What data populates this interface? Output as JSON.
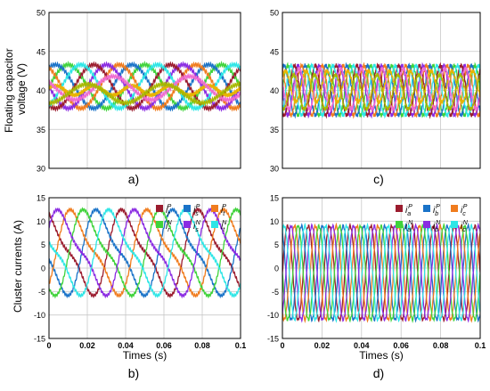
{
  "figure": {
    "colors": {
      "red": "#9b1c2e",
      "blue": "#1a73c8",
      "orange": "#f07c1e",
      "green": "#3fd33a",
      "purple": "#8a2be2",
      "cyan": "#2ee6e6",
      "gold": "#e8b400",
      "pink": "#f06bd0",
      "olive": "#a8b800"
    },
    "ylabel_top": "Floating capacitor voltage (V)",
    "ylabel_top_lines": [
      "Floating capacitor",
      "voltage (V)"
    ],
    "ylabel_bottom": "Cluster currents (A)",
    "xlabel": "Times (s)"
  },
  "chart_data": [
    {
      "id": "a",
      "panel_label": "a)",
      "type": "line",
      "xlim": [
        0,
        0.1
      ],
      "ylim": [
        30,
        50
      ],
      "yticks": [
        "50",
        "45",
        "40",
        "35",
        "30"
      ],
      "grid": true,
      "series": [
        {
          "color": "#3fd33a",
          "mean": 40.5,
          "amp": 2.8,
          "freq": 25,
          "phase": 0.0
        },
        {
          "color": "#1a73c8",
          "mean": 40.5,
          "amp": 2.8,
          "freq": 25,
          "phase": 1.05
        },
        {
          "color": "#f07c1e",
          "mean": 40.5,
          "amp": 2.8,
          "freq": 25,
          "phase": 2.1
        },
        {
          "color": "#8a2be2",
          "mean": 40.5,
          "amp": 2.8,
          "freq": 25,
          "phase": 3.14
        },
        {
          "color": "#9b1c2e",
          "mean": 40.5,
          "amp": 2.8,
          "freq": 25,
          "phase": 4.19
        },
        {
          "color": "#2ee6e6",
          "mean": 40.5,
          "amp": 2.8,
          "freq": 25,
          "phase": 5.24
        },
        {
          "color": "#e8b400",
          "mean": 40.0,
          "amp": 0.6,
          "freq": 50,
          "phase": 0.5
        },
        {
          "color": "#f06bd0",
          "mean": 40.3,
          "amp": 1.5,
          "freq": 25,
          "phase": 2.6
        },
        {
          "color": "#a8b800",
          "mean": 39.6,
          "amp": 1.2,
          "freq": 25,
          "phase": 4.7
        }
      ]
    },
    {
      "id": "c",
      "panel_label": "c)",
      "type": "line",
      "xlim": [
        0,
        0.1
      ],
      "ylim": [
        30,
        50
      ],
      "yticks": [
        "50",
        "45",
        "40",
        "35",
        "30"
      ],
      "grid": true,
      "series": [
        {
          "color": "#3fd33a",
          "mean": 40.0,
          "amp": 3.2,
          "freq": 95,
          "phase": 0.0
        },
        {
          "color": "#1a73c8",
          "mean": 40.0,
          "amp": 3.2,
          "freq": 95,
          "phase": 1.05
        },
        {
          "color": "#f07c1e",
          "mean": 40.0,
          "amp": 3.2,
          "freq": 95,
          "phase": 2.1
        },
        {
          "color": "#8a2be2",
          "mean": 40.0,
          "amp": 3.2,
          "freq": 95,
          "phase": 3.14
        },
        {
          "color": "#9b1c2e",
          "mean": 40.0,
          "amp": 3.2,
          "freq": 95,
          "phase": 4.19
        },
        {
          "color": "#2ee6e6",
          "mean": 40.0,
          "amp": 3.2,
          "freq": 95,
          "phase": 5.24
        },
        {
          "color": "#e8b400",
          "mean": 40.5,
          "amp": 2.0,
          "freq": 95,
          "phase": 0.7
        },
        {
          "color": "#f06bd0",
          "mean": 40.2,
          "amp": 2.6,
          "freq": 95,
          "phase": 2.8
        },
        {
          "color": "#a8b800",
          "mean": 39.8,
          "amp": 2.2,
          "freq": 95,
          "phase": 4.4
        }
      ]
    },
    {
      "id": "b",
      "panel_label": "b)",
      "type": "line",
      "xlim": [
        0,
        0.1
      ],
      "ylim": [
        -15,
        15
      ],
      "xticks": [
        "0",
        "0.02",
        "0.04",
        "0.06",
        "0.08",
        "0.1"
      ],
      "yticks": [
        "15",
        "10",
        "5",
        "0",
        "-5",
        "-10",
        "-15"
      ],
      "xlabel": "Times (s)",
      "grid": true,
      "legend": {
        "position": "top-right",
        "columns": 3
      },
      "series": [
        {
          "name": "i_r^P",
          "sym": "i",
          "sub": "r",
          "sup": "P",
          "color": "#9b1c2e",
          "offset": 3.3,
          "amp": 8,
          "h": 2.5,
          "freq": 25,
          "phase": 1.5
        },
        {
          "name": "i_s^P",
          "sym": "i",
          "sub": "s",
          "sup": "P",
          "color": "#1a73c8",
          "offset": 3.3,
          "amp": 8,
          "h": 2.5,
          "freq": 25,
          "phase": 3.59
        },
        {
          "name": "i_t^P",
          "sym": "i",
          "sub": "t",
          "sup": "P",
          "color": "#f07c1e",
          "offset": 3.3,
          "amp": 8,
          "h": 2.5,
          "freq": 25,
          "phase": 5.69
        },
        {
          "name": "i_r^N",
          "sym": "i",
          "sub": "r",
          "sup": "N",
          "color": "#3fd33a",
          "offset": 3.3,
          "amp": 8,
          "h": 2.5,
          "freq": 25,
          "phase": 4.64
        },
        {
          "name": "i_s^N",
          "sym": "i",
          "sub": "s",
          "sup": "N",
          "color": "#8a2be2",
          "offset": 3.3,
          "amp": 8,
          "h": 2.5,
          "freq": 25,
          "phase": 0.45
        },
        {
          "name": "i_t^N",
          "sym": "i",
          "sub": "t",
          "sup": "N",
          "color": "#2ee6e6",
          "offset": 3.3,
          "amp": 8,
          "h": 2.5,
          "freq": 25,
          "phase": 2.55
        }
      ]
    },
    {
      "id": "d",
      "panel_label": "d)",
      "type": "line",
      "xlim": [
        0,
        0.1
      ],
      "ylim": [
        -15,
        15
      ],
      "xticks": [
        "0",
        "0.02",
        "0.04",
        "0.06",
        "0.08",
        "0.1"
      ],
      "yticks": [
        "15",
        "10",
        "5",
        "0",
        "-5",
        "-10",
        "-15"
      ],
      "xlabel": "Times (s)",
      "grid": true,
      "legend": {
        "position": "top-right",
        "columns": 3
      },
      "series": [
        {
          "name": "i_a^P",
          "sym": "i",
          "sub": "a",
          "sup": "P",
          "color": "#9b1c2e",
          "offset": -1,
          "amp": 10,
          "h": 0,
          "freq": 95,
          "phase": 0.0
        },
        {
          "name": "i_b^P",
          "sym": "i",
          "sub": "b",
          "sup": "P",
          "color": "#1a73c8",
          "offset": -1,
          "amp": 10,
          "h": 0,
          "freq": 95,
          "phase": 2.09
        },
        {
          "name": "i_c^P",
          "sym": "i",
          "sub": "c",
          "sup": "P",
          "color": "#f07c1e",
          "offset": -1,
          "amp": 10,
          "h": 0,
          "freq": 95,
          "phase": 4.19
        },
        {
          "name": "i_a^N",
          "sym": "i",
          "sub": "a",
          "sup": "N",
          "color": "#3fd33a",
          "offset": -1,
          "amp": 10,
          "h": 0,
          "freq": 95,
          "phase": 3.14
        },
        {
          "name": "i_b^N",
          "sym": "i",
          "sub": "b",
          "sup": "N",
          "color": "#8a2be2",
          "offset": -1,
          "amp": 10,
          "h": 0,
          "freq": 95,
          "phase": 5.24
        },
        {
          "name": "i_c^N",
          "sym": "i",
          "sub": "c",
          "sup": "N",
          "color": "#2ee6e6",
          "offset": -1,
          "amp": 10,
          "h": 0,
          "freq": 95,
          "phase": 1.05
        }
      ]
    }
  ]
}
